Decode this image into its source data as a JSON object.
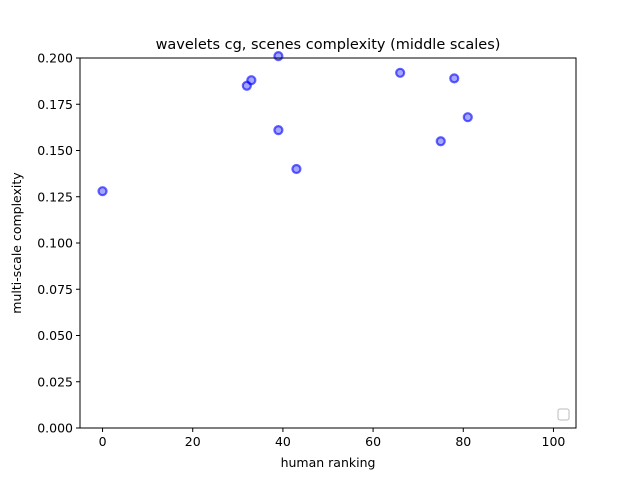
{
  "chart_data": {
    "type": "scatter",
    "title": "wavelets cg, scenes complexity (middle scales)",
    "xlabel": "human ranking",
    "ylabel": "multi-scale complexity",
    "xlim": [
      -5,
      105
    ],
    "ylim": [
      0,
      0.2
    ],
    "x_ticks": [
      0,
      20,
      40,
      60,
      80,
      100
    ],
    "y_ticks": [
      0.0,
      0.025,
      0.05,
      0.075,
      0.1,
      0.125,
      0.15,
      0.175,
      0.2
    ],
    "x_tick_labels": [
      "0",
      "20",
      "40",
      "60",
      "80",
      "100"
    ],
    "y_tick_labels": [
      "0.000",
      "0.025",
      "0.050",
      "0.075",
      "0.100",
      "0.125",
      "0.150",
      "0.175",
      "0.200"
    ],
    "grid": false,
    "legend": {
      "placement": "lower-right",
      "entries": []
    },
    "series": [
      {
        "color": "#0000ff",
        "points": [
          {
            "x": 0,
            "y": 0.128
          },
          {
            "x": 32,
            "y": 0.185
          },
          {
            "x": 33,
            "y": 0.188
          },
          {
            "x": 39,
            "y": 0.201
          },
          {
            "x": 39,
            "y": 0.161
          },
          {
            "x": 43,
            "y": 0.14
          },
          {
            "x": 66,
            "y": 0.192
          },
          {
            "x": 75,
            "y": 0.155
          },
          {
            "x": 78,
            "y": 0.189
          },
          {
            "x": 81,
            "y": 0.168
          }
        ]
      }
    ]
  }
}
